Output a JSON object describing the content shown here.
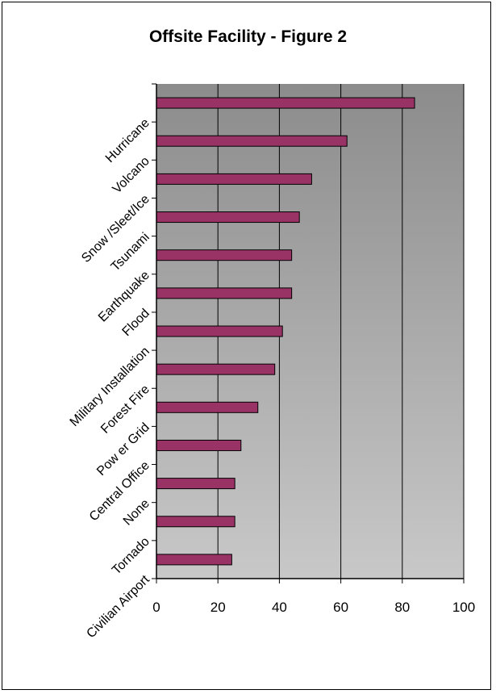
{
  "chart_data": {
    "type": "bar",
    "orientation": "horizontal",
    "title": "Offsite Facility - Figure 2",
    "xlabel": "",
    "ylabel": "",
    "xlim": [
      0,
      100
    ],
    "x_ticks": [
      0,
      20,
      40,
      60,
      80,
      100
    ],
    "grid": true,
    "legend": "none",
    "bar_color": "#993366",
    "plot_background": "gradient gray",
    "categories": [
      "Hurricane",
      "Volcano",
      "Snow /Sleet/Ice",
      "Tsunami",
      "Earthquake",
      "Flood",
      "Military Installation",
      "Forest Fire",
      "Pow er Grid",
      "Central Office",
      "None",
      "Tornado",
      "Civilian Airport"
    ],
    "values": [
      84,
      62,
      50.5,
      46.5,
      44,
      44,
      41,
      38.5,
      33,
      27.5,
      25.5,
      25.5,
      24.5
    ]
  }
}
